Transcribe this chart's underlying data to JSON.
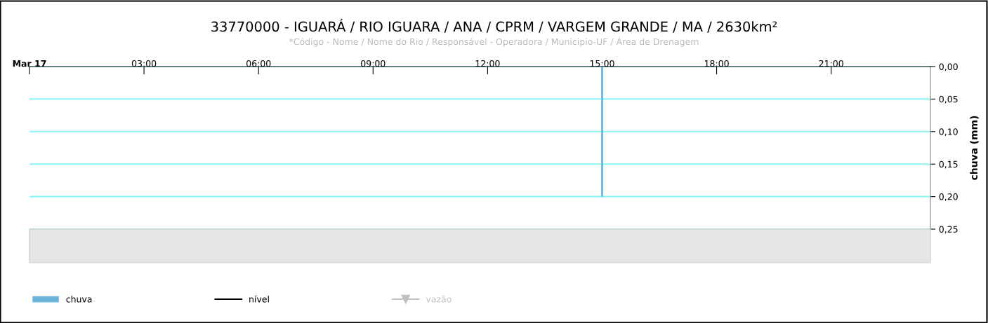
{
  "chart_data": {
    "type": "bar",
    "title": "33770000 - IGUARÁ / RIO IGUARA / ANA / CPRM / VARGEM GRANDE / MA / 2630km²",
    "subtitle": "*Código - Nome / Nome do Rio / Responsável - Operadora / Municipio-UF / Área de Drenagem",
    "ylabel": "chuva (mm)",
    "xlim": [
      0,
      23.6
    ],
    "xticks": [
      {
        "value": 0,
        "label": "Mar 17"
      },
      {
        "value": 3,
        "label": "03:00"
      },
      {
        "value": 6,
        "label": "06:00"
      },
      {
        "value": 9,
        "label": "09:00"
      },
      {
        "value": 12,
        "label": "12:00"
      },
      {
        "value": 15,
        "label": "15:00"
      },
      {
        "value": 18,
        "label": "18:00"
      },
      {
        "value": 21,
        "label": "21:00"
      }
    ],
    "ylim": [
      0.25,
      0
    ],
    "yticks": [
      {
        "value": 0,
        "label": "0,00"
      },
      {
        "value": 0.05,
        "label": "0,05"
      },
      {
        "value": 0.1,
        "label": "0,10"
      },
      {
        "value": 0.15,
        "label": "0,15"
      },
      {
        "value": 0.2,
        "label": "0,20"
      },
      {
        "value": 0.25,
        "label": "0,25"
      }
    ],
    "grid": "y",
    "legend": "bottom",
    "series": [
      {
        "name": "chuva",
        "color": "#6ab4dc",
        "x": [
          15
        ],
        "values": [
          0.2
        ]
      },
      {
        "name": "nível",
        "type": "line",
        "color": "#000000"
      },
      {
        "name": "vazão",
        "type": "line",
        "color": "#c0c0c0",
        "marker": "triangle"
      }
    ]
  }
}
